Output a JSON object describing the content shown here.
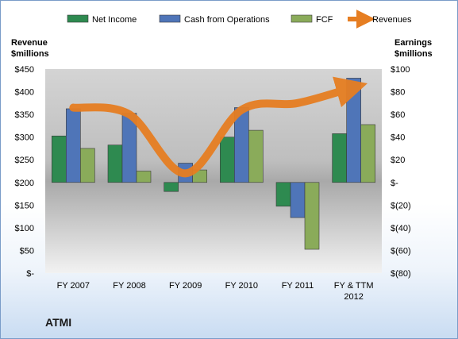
{
  "company_label": "ATMI",
  "chart_data": {
    "type": "bar",
    "categories": [
      "FY 2007",
      "FY 2008",
      "FY 2009",
      "FY 2010",
      "FY 2011",
      "FY & TTM 2012"
    ],
    "series": [
      {
        "name": "Net Income",
        "axis": "right",
        "kind": "bar",
        "color": "#2e8a50",
        "values": [
          41,
          33,
          -8,
          40,
          -21,
          43
        ]
      },
      {
        "name": "Cash from Operations",
        "axis": "right",
        "kind": "bar",
        "color": "#4f75b8",
        "values": [
          65,
          61,
          17,
          66,
          -31,
          92
        ]
      },
      {
        "name": "FCF",
        "axis": "right",
        "kind": "bar",
        "color": "#8aab5a",
        "values": [
          30,
          10,
          11,
          46,
          -59,
          51
        ]
      },
      {
        "name": "Revenues",
        "axis": "left",
        "kind": "line",
        "color": "#e67e22",
        "values": [
          365,
          350,
          220,
          360,
          375,
          410
        ]
      }
    ],
    "left_axis": {
      "title": "Revenue\n$millions",
      "ylim": [
        0,
        450
      ],
      "ticks": [
        450,
        400,
        350,
        300,
        250,
        200,
        150,
        100,
        50,
        0
      ],
      "tick_labels": [
        "$450",
        "$400",
        "$350",
        "$300",
        "$250",
        "$200",
        "$150",
        "$100",
        "$50",
        "$-"
      ]
    },
    "right_axis": {
      "title": "Earnings\n$millions",
      "ylim": [
        -80,
        100
      ],
      "ticks": [
        100,
        80,
        60,
        40,
        20,
        0,
        -20,
        -40,
        -60,
        -80
      ],
      "tick_labels": [
        "$100",
        "$80",
        "$60",
        "$40",
        "$20",
        "$-",
        "$(20)",
        "$(40)",
        "$(60)",
        "$(80)"
      ]
    },
    "x_labels": [
      [
        "FY 2007"
      ],
      [
        "FY 2008"
      ],
      [
        "FY 2009"
      ],
      [
        "FY 2010"
      ],
      [
        "FY 2011"
      ],
      [
        "FY & TTM",
        "2012"
      ]
    ],
    "legend_position": "top",
    "grid": false
  }
}
